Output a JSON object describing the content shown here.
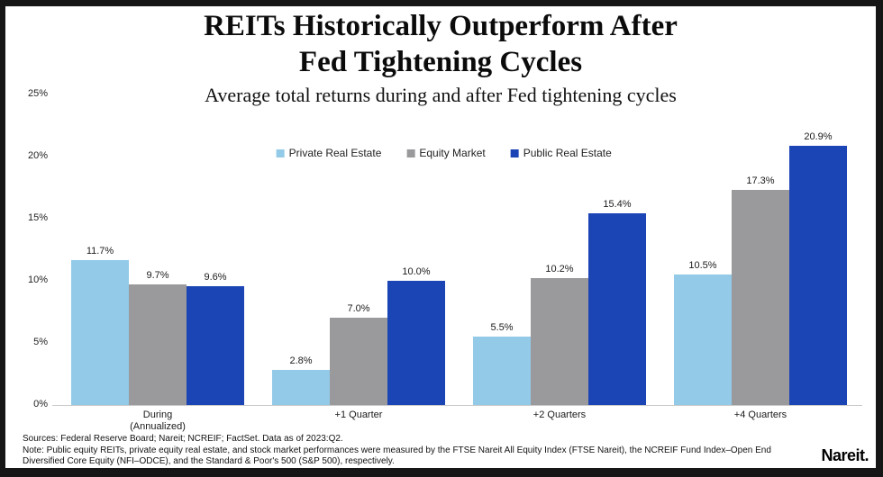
{
  "page": {
    "title_line1": "REITs Historically Outperform After",
    "title_line2": "Fed Tightening Cycles",
    "subtitle": "Average total returns during and after Fed tightening cycles",
    "footer": {
      "sources": "Sources: Federal Reserve Board; Nareit; NCREIF; FactSet. Data as of 2023:Q2.",
      "note": "Note: Public equity REITs, private equity real estate, and stock market performances were measured by the FTSE Nareit All Equity Index (FTSE Nareit), the NCREIF Fund Index–Open End Diversified Core Equity (NFI–ODCE), and the Standard & Poor's 500 (S&P 500), respectively."
    },
    "logo": "Nareit."
  },
  "chart_data": {
    "type": "bar",
    "title": "REITs Historically Outperform After Fed Tightening Cycles",
    "subtitle": "Average total returns during and after Fed tightening cycles",
    "categories": [
      "During\n(Annualized)",
      "+1 Quarter",
      "+2 Quarters",
      "+4 Quarters"
    ],
    "series": [
      {
        "name": "Private Real Estate",
        "color": "#92CAE8",
        "values": [
          11.7,
          2.8,
          5.5,
          10.5
        ]
      },
      {
        "name": "Equity Market",
        "color": "#9A999B",
        "values": [
          9.7,
          7.0,
          10.2,
          17.3
        ]
      },
      {
        "name": "Public Real Estate",
        "color": "#1B45B5",
        "values": [
          9.6,
          10.0,
          15.4,
          20.9
        ]
      }
    ],
    "value_label_format": "percent_one_decimal",
    "yticks": [
      "0%",
      "5%",
      "10%",
      "15%",
      "20%",
      "25%"
    ],
    "ylim": [
      0,
      25
    ],
    "grid": false,
    "legend_position": "top-center"
  }
}
